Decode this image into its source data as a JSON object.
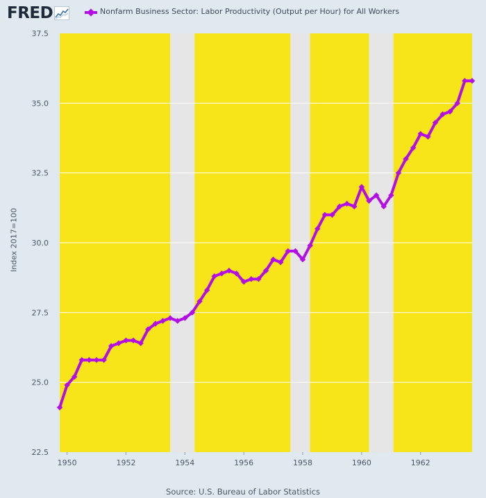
{
  "header": {
    "logo_text": "FRED",
    "logo_icon": "chart-line-icon",
    "legend_label": "Nonfarm Business Sector: Labor Productivity (Output per Hour) for All Workers"
  },
  "footer": {
    "source": "Source: U.S. Bureau of Labor Statistics"
  },
  "colors": {
    "page_bg": "#e1e9f0",
    "shade": "#f7e51a",
    "recession": "#e6e6e6",
    "line": "#b30ee3",
    "grid": "#ffffff"
  },
  "chart_data": {
    "type": "line",
    "title": "",
    "xlabel": "",
    "ylabel": "Index 2017=100",
    "xlim": [
      1949.75,
      1963.75
    ],
    "ylim": [
      22.5,
      37.5
    ],
    "y_ticks": [
      "22.5",
      "25.0",
      "27.5",
      "30.0",
      "32.5",
      "35.0",
      "37.5"
    ],
    "x_ticks": [
      "1950",
      "1952",
      "1954",
      "1956",
      "1958",
      "1960",
      "1962"
    ],
    "recession_bands": [
      [
        1953.5,
        1954.33
      ],
      [
        1957.58,
        1958.25
      ],
      [
        1960.25,
        1961.08
      ]
    ],
    "series": [
      {
        "name": "Nonfarm Business Sector: Labor Productivity (Output per Hour) for All Workers",
        "x": [
          "1949 Q4",
          "1950 Q1",
          "1950 Q2",
          "1950 Q3",
          "1950 Q4",
          "1951 Q1",
          "1951 Q2",
          "1951 Q3",
          "1951 Q4",
          "1952 Q1",
          "1952 Q2",
          "1952 Q3",
          "1952 Q4",
          "1953 Q1",
          "1953 Q2",
          "1953 Q3",
          "1953 Q4",
          "1954 Q1",
          "1954 Q2",
          "1954 Q3",
          "1954 Q4",
          "1955 Q1",
          "1955 Q2",
          "1955 Q3",
          "1955 Q4",
          "1956 Q1",
          "1956 Q2",
          "1956 Q3",
          "1956 Q4",
          "1957 Q1",
          "1957 Q2",
          "1957 Q3",
          "1957 Q4",
          "1958 Q1",
          "1958 Q2",
          "1958 Q3",
          "1958 Q4",
          "1959 Q1",
          "1959 Q2",
          "1959 Q3",
          "1959 Q4",
          "1960 Q1",
          "1960 Q2",
          "1960 Q3",
          "1960 Q4",
          "1961 Q1",
          "1961 Q2",
          "1961 Q3",
          "1961 Q4",
          "1962 Q1",
          "1962 Q2",
          "1962 Q3",
          "1962 Q4",
          "1963 Q1",
          "1963 Q2",
          "1963 Q3",
          "1963 Q4"
        ],
        "values": [
          24.1,
          24.9,
          25.2,
          25.8,
          25.8,
          25.8,
          25.8,
          26.3,
          26.4,
          26.5,
          26.5,
          26.4,
          26.9,
          27.1,
          27.2,
          27.3,
          27.2,
          27.3,
          27.5,
          27.9,
          28.3,
          28.8,
          28.9,
          29.0,
          28.9,
          28.6,
          28.7,
          28.7,
          29.0,
          29.4,
          29.3,
          29.7,
          29.7,
          29.4,
          29.9,
          30.5,
          31.0,
          31.0,
          31.3,
          31.4,
          31.3,
          32.0,
          31.5,
          31.7,
          31.3,
          31.7,
          32.5,
          33.0,
          33.4,
          33.9,
          33.8,
          34.3,
          34.6,
          34.7,
          35.0,
          35.8,
          35.8
        ]
      }
    ]
  }
}
